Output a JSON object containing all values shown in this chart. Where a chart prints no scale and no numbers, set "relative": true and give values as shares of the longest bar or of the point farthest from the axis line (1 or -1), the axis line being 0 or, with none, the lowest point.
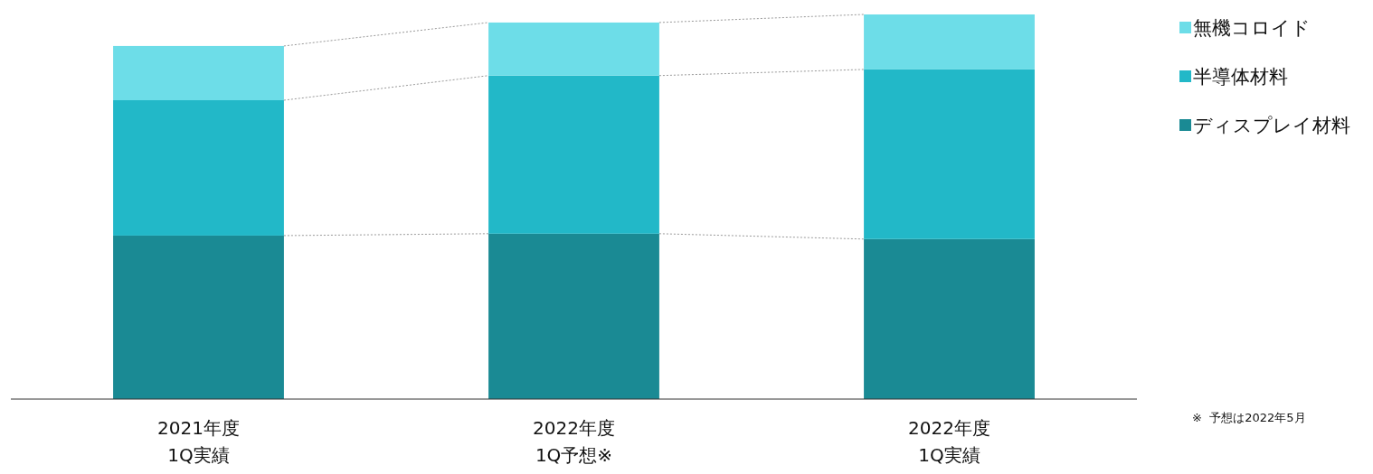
{
  "chart_data": {
    "type": "bar",
    "stacked": true,
    "relative": true,
    "legend": "top right",
    "categories": [
      "2021年度\n1Q実績",
      "2022年度\n1Q予想※",
      "2022年度\n1Q実績"
    ],
    "series": [
      {
        "name": "ディスプレイ材料",
        "color": "#1a8a94",
        "values": [
          0.425,
          0.43,
          0.416
        ]
      },
      {
        "name": "半導体材料",
        "color": "#22b8c8",
        "values": [
          0.352,
          0.411,
          0.441
        ]
      },
      {
        "name": "無機コロイド",
        "color": "#6ddde8",
        "values": [
          0.141,
          0.138,
          0.143
        ]
      }
    ],
    "annotations": [
      "※  予想は2022年5月"
    ]
  }
}
